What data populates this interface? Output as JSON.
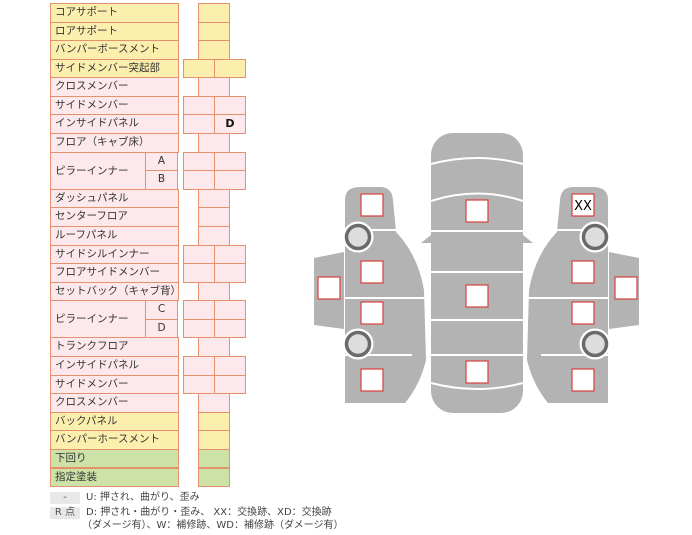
{
  "rows": [
    {
      "label": "コアサポート",
      "color": "y",
      "cells": 1
    },
    {
      "label": "ロアサポート",
      "color": "y",
      "cells": 1
    },
    {
      "label": "バンパーボースメント",
      "color": "y",
      "cells": 1
    },
    {
      "label": "サイドメンバー突起部",
      "color": "y",
      "cells": 2
    },
    {
      "label": "クロスメンバー",
      "color": "p",
      "cells": 1
    },
    {
      "label": "サイドメンバー",
      "color": "p",
      "cells": 2
    },
    {
      "label": "インサイドパネル",
      "color": "p",
      "cells": 2,
      "values": [
        "",
        "D"
      ]
    },
    {
      "label": "フロア（キャブ床）",
      "color": "p",
      "cells": 1
    },
    {
      "label": "ピラーインナー",
      "sub": "A",
      "span": 2,
      "color": "p",
      "cells": 2
    },
    {
      "label": "",
      "sub": "B",
      "color": "p",
      "cells": 2
    },
    {
      "label": "ダッシュパネル",
      "color": "p",
      "cells": 1
    },
    {
      "label": "センターフロア",
      "color": "p",
      "cells": 1
    },
    {
      "label": "ルーフパネル",
      "color": "p",
      "cells": 1
    },
    {
      "label": "サイドシルインナー",
      "color": "p",
      "cells": 2
    },
    {
      "label": "フロアサイドメンバー",
      "color": "p",
      "cells": 2
    },
    {
      "label": "セットバック（キャブ背）",
      "color": "p",
      "cells": 1
    },
    {
      "label": "ピラーインナー",
      "sub": "C",
      "span": 2,
      "color": "p",
      "cells": 2
    },
    {
      "label": "",
      "sub": "D",
      "color": "p",
      "cells": 2
    },
    {
      "label": "トランクフロア",
      "color": "p",
      "cells": 1
    },
    {
      "label": "インサイドパネル",
      "color": "p",
      "cells": 2
    },
    {
      "label": "サイドメンバー",
      "color": "p",
      "cells": 2
    },
    {
      "label": "クロスメンバー",
      "color": "p",
      "cells": 1
    },
    {
      "label": "バックパネル",
      "color": "y",
      "cells": 1
    },
    {
      "label": "バンパーホースメント",
      "color": "y",
      "cells": 1
    },
    {
      "label": "下回り",
      "color": "g",
      "cells": 1
    },
    {
      "label": "指定塗装",
      "color": "g",
      "cells": 1
    }
  ],
  "diagram": {
    "front_right_mark": "XX",
    "body_color": "#b3b3b3",
    "marker_color": "#d9403e"
  },
  "legend": [
    {
      "key": "-",
      "text": "U: 押され、曲がり、歪み"
    },
    {
      "key": "R 点",
      "text": "D: 押され・曲がり・歪み、 XX：交換跡、XD：交換跡",
      "text2": "（ダメージ有）、W：補修跡、WD：補修跡（ダメージ有）"
    }
  ]
}
